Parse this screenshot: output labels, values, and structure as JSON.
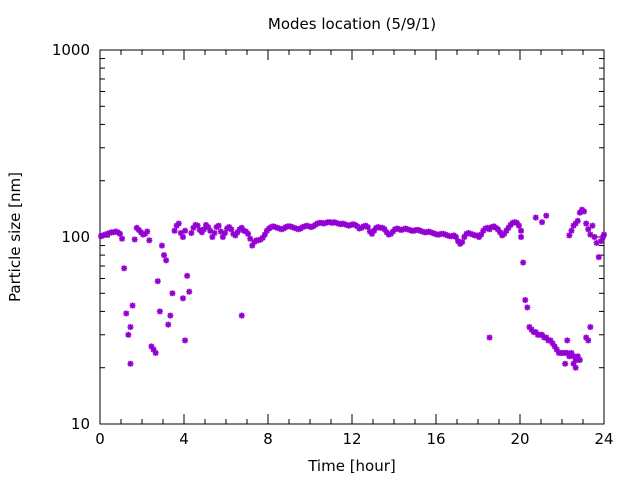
{
  "chart_data": {
    "type": "scatter",
    "title": "Modes location (5/9/1)",
    "xlabel": "Time [hour]",
    "ylabel": "Particle size [nm]",
    "xlim": [
      0,
      24
    ],
    "ylim": [
      10,
      1000
    ],
    "y_scale": "log",
    "x_ticks": [
      "0",
      "4",
      "8",
      "12",
      "16",
      "20",
      "24"
    ],
    "y_ticks": [
      "10",
      "100",
      "1000"
    ],
    "marker_color": "#9400d3",
    "series": [
      {
        "points": [
          [
            0.05,
            101
          ],
          [
            0.15,
            102
          ],
          [
            0.25,
            103
          ],
          [
            0.35,
            104
          ],
          [
            0.45,
            105
          ],
          [
            0.55,
            106
          ],
          [
            0.65,
            106
          ],
          [
            0.75,
            107
          ],
          [
            0.85,
            106
          ],
          [
            0.95,
            104
          ],
          [
            1.05,
            98
          ],
          [
            1.15,
            68
          ],
          [
            1.25,
            39
          ],
          [
            1.35,
            30
          ],
          [
            1.45,
            33
          ],
          [
            1.55,
            43
          ],
          [
            1.45,
            21
          ],
          [
            1.65,
            97
          ],
          [
            1.75,
            112
          ],
          [
            1.85,
            109
          ],
          [
            1.95,
            106
          ],
          [
            2.05,
            103
          ],
          [
            2.15,
            104
          ],
          [
            2.25,
            107
          ],
          [
            2.35,
            96
          ],
          [
            2.45,
            26
          ],
          [
            2.55,
            25
          ],
          [
            2.65,
            24
          ],
          [
            2.75,
            58
          ],
          [
            2.85,
            40
          ],
          [
            2.95,
            90
          ],
          [
            3.05,
            80
          ],
          [
            3.15,
            75
          ],
          [
            3.25,
            34
          ],
          [
            3.35,
            38
          ],
          [
            3.45,
            50
          ],
          [
            3.55,
            108
          ],
          [
            3.65,
            115
          ],
          [
            3.75,
            118
          ],
          [
            3.85,
            105
          ],
          [
            3.95,
            100
          ],
          [
            4.05,
            108
          ],
          [
            3.95,
            47
          ],
          [
            4.05,
            28
          ],
          [
            4.15,
            62
          ],
          [
            4.25,
            51
          ],
          [
            4.35,
            105
          ],
          [
            4.45,
            112
          ],
          [
            4.55,
            116
          ],
          [
            4.65,
            115
          ],
          [
            4.75,
            109
          ],
          [
            4.85,
            106
          ],
          [
            4.95,
            110
          ],
          [
            5.05,
            116
          ],
          [
            5.15,
            113
          ],
          [
            5.25,
            108
          ],
          [
            5.35,
            100
          ],
          [
            5.45,
            105
          ],
          [
            5.55,
            113
          ],
          [
            5.65,
            115
          ],
          [
            5.75,
            107
          ],
          [
            5.85,
            100
          ],
          [
            5.95,
            105
          ],
          [
            6.05,
            111
          ],
          [
            6.15,
            113
          ],
          [
            6.25,
            110
          ],
          [
            6.35,
            104
          ],
          [
            6.45,
            102
          ],
          [
            6.55,
            106
          ],
          [
            6.65,
            110
          ],
          [
            6.75,
            112
          ],
          [
            6.85,
            108
          ],
          [
            6.75,
            38
          ],
          [
            6.95,
            107
          ],
          [
            7.05,
            104
          ],
          [
            7.15,
            98
          ],
          [
            7.25,
            90
          ],
          [
            7.35,
            94
          ],
          [
            7.45,
            96
          ],
          [
            7.55,
            96
          ],
          [
            7.65,
            97
          ],
          [
            7.75,
            99
          ],
          [
            7.85,
            103
          ],
          [
            7.95,
            108
          ],
          [
            8.05,
            111
          ],
          [
            8.15,
            113
          ],
          [
            8.25,
            114
          ],
          [
            8.35,
            113
          ],
          [
            8.45,
            112
          ],
          [
            8.55,
            111
          ],
          [
            8.65,
            110
          ],
          [
            8.75,
            111
          ],
          [
            8.85,
            113
          ],
          [
            8.95,
            114
          ],
          [
            9.05,
            114
          ],
          [
            9.15,
            113
          ],
          [
            9.25,
            112
          ],
          [
            9.35,
            111
          ],
          [
            9.45,
            110
          ],
          [
            9.55,
            111
          ],
          [
            9.65,
            113
          ],
          [
            9.75,
            114
          ],
          [
            9.85,
            115
          ],
          [
            9.95,
            114
          ],
          [
            10.05,
            113
          ],
          [
            10.15,
            114
          ],
          [
            10.25,
            116
          ],
          [
            10.35,
            118
          ],
          [
            10.45,
            119
          ],
          [
            10.55,
            119
          ],
          [
            10.65,
            118
          ],
          [
            10.75,
            119
          ],
          [
            10.85,
            120
          ],
          [
            10.95,
            120
          ],
          [
            11.05,
            119
          ],
          [
            11.15,
            120
          ],
          [
            11.25,
            119
          ],
          [
            11.35,
            118
          ],
          [
            11.45,
            117
          ],
          [
            11.55,
            118
          ],
          [
            11.65,
            117
          ],
          [
            11.75,
            116
          ],
          [
            11.85,
            115
          ],
          [
            11.95,
            116
          ],
          [
            12.05,
            117
          ],
          [
            12.15,
            116
          ],
          [
            12.25,
            114
          ],
          [
            12.35,
            111
          ],
          [
            12.45,
            112
          ],
          [
            12.55,
            114
          ],
          [
            12.65,
            115
          ],
          [
            12.75,
            113
          ],
          [
            12.85,
            107
          ],
          [
            12.95,
            104
          ],
          [
            13.05,
            108
          ],
          [
            13.15,
            112
          ],
          [
            13.25,
            113
          ],
          [
            13.35,
            112
          ],
          [
            13.45,
            112
          ],
          [
            13.55,
            110
          ],
          [
            13.65,
            106
          ],
          [
            13.75,
            103
          ],
          [
            13.85,
            104
          ],
          [
            13.95,
            107
          ],
          [
            14.05,
            110
          ],
          [
            14.15,
            111
          ],
          [
            14.25,
            110
          ],
          [
            14.35,
            109
          ],
          [
            14.45,
            110
          ],
          [
            14.55,
            111
          ],
          [
            14.65,
            110
          ],
          [
            14.75,
            109
          ],
          [
            14.85,
            108
          ],
          [
            14.95,
            108
          ],
          [
            15.05,
            109
          ],
          [
            15.15,
            109
          ],
          [
            15.25,
            108
          ],
          [
            15.35,
            107
          ],
          [
            15.45,
            106
          ],
          [
            15.55,
            106
          ],
          [
            15.65,
            107
          ],
          [
            15.75,
            106
          ],
          [
            15.85,
            105
          ],
          [
            15.95,
            104
          ],
          [
            16.05,
            103
          ],
          [
            16.15,
            103
          ],
          [
            16.25,
            104
          ],
          [
            16.35,
            104
          ],
          [
            16.45,
            103
          ],
          [
            16.55,
            102
          ],
          [
            16.65,
            101
          ],
          [
            16.75,
            101
          ],
          [
            16.85,
            102
          ],
          [
            16.95,
            100
          ],
          [
            17.05,
            95
          ],
          [
            17.15,
            92
          ],
          [
            17.25,
            94
          ],
          [
            17.35,
            100
          ],
          [
            17.45,
            104
          ],
          [
            17.55,
            105
          ],
          [
            17.65,
            104
          ],
          [
            17.75,
            103
          ],
          [
            17.85,
            102
          ],
          [
            17.95,
            102
          ],
          [
            18.05,
            100
          ],
          [
            18.15,
            103
          ],
          [
            18.25,
            108
          ],
          [
            18.35,
            111
          ],
          [
            18.45,
            112
          ],
          [
            18.55,
            110
          ],
          [
            18.65,
            113
          ],
          [
            18.75,
            114
          ],
          [
            18.55,
            29
          ],
          [
            18.85,
            112
          ],
          [
            18.95,
            110
          ],
          [
            19.05,
            106
          ],
          [
            19.15,
            102
          ],
          [
            19.25,
            104
          ],
          [
            19.35,
            108
          ],
          [
            19.45,
            112
          ],
          [
            19.55,
            116
          ],
          [
            19.65,
            119
          ],
          [
            19.75,
            120
          ],
          [
            19.85,
            119
          ],
          [
            19.95,
            115
          ],
          [
            20.05,
            108
          ],
          [
            20.05,
            100
          ],
          [
            20.15,
            73
          ],
          [
            20.25,
            46
          ],
          [
            20.35,
            42
          ],
          [
            20.45,
            33
          ],
          [
            20.55,
            32
          ],
          [
            20.65,
            31
          ],
          [
            20.75,
            31
          ],
          [
            20.85,
            30
          ],
          [
            20.95,
            30
          ],
          [
            21.05,
            30
          ],
          [
            21.15,
            29
          ],
          [
            21.25,
            29
          ],
          [
            21.35,
            28
          ],
          [
            21.45,
            28
          ],
          [
            21.55,
            27
          ],
          [
            21.65,
            26
          ],
          [
            21.75,
            25
          ],
          [
            21.85,
            24
          ],
          [
            21.95,
            24
          ],
          [
            22.05,
            24
          ],
          [
            22.15,
            24
          ],
          [
            22.25,
            24
          ],
          [
            22.35,
            23
          ],
          [
            22.45,
            24
          ],
          [
            22.55,
            23
          ],
          [
            22.65,
            22
          ],
          [
            22.75,
            23
          ],
          [
            22.85,
            22
          ],
          [
            20.75,
            127
          ],
          [
            21.05,
            120
          ],
          [
            21.25,
            130
          ],
          [
            22.15,
            21
          ],
          [
            22.25,
            28
          ],
          [
            22.55,
            21
          ],
          [
            22.65,
            20
          ],
          [
            22.75,
            22
          ],
          [
            22.35,
            102
          ],
          [
            22.45,
            108
          ],
          [
            22.55,
            115
          ],
          [
            22.65,
            118
          ],
          [
            22.75,
            122
          ],
          [
            22.85,
            135
          ],
          [
            22.95,
            140
          ],
          [
            23.05,
            137
          ],
          [
            23.15,
            118
          ],
          [
            23.25,
            110
          ],
          [
            23.35,
            103
          ],
          [
            23.15,
            29
          ],
          [
            23.25,
            28
          ],
          [
            23.35,
            33
          ],
          [
            23.45,
            115
          ],
          [
            23.55,
            100
          ],
          [
            23.65,
            93
          ],
          [
            23.75,
            78
          ],
          [
            23.85,
            95
          ],
          [
            23.95,
            100
          ],
          [
            24.0,
            103
          ]
        ]
      }
    ]
  }
}
